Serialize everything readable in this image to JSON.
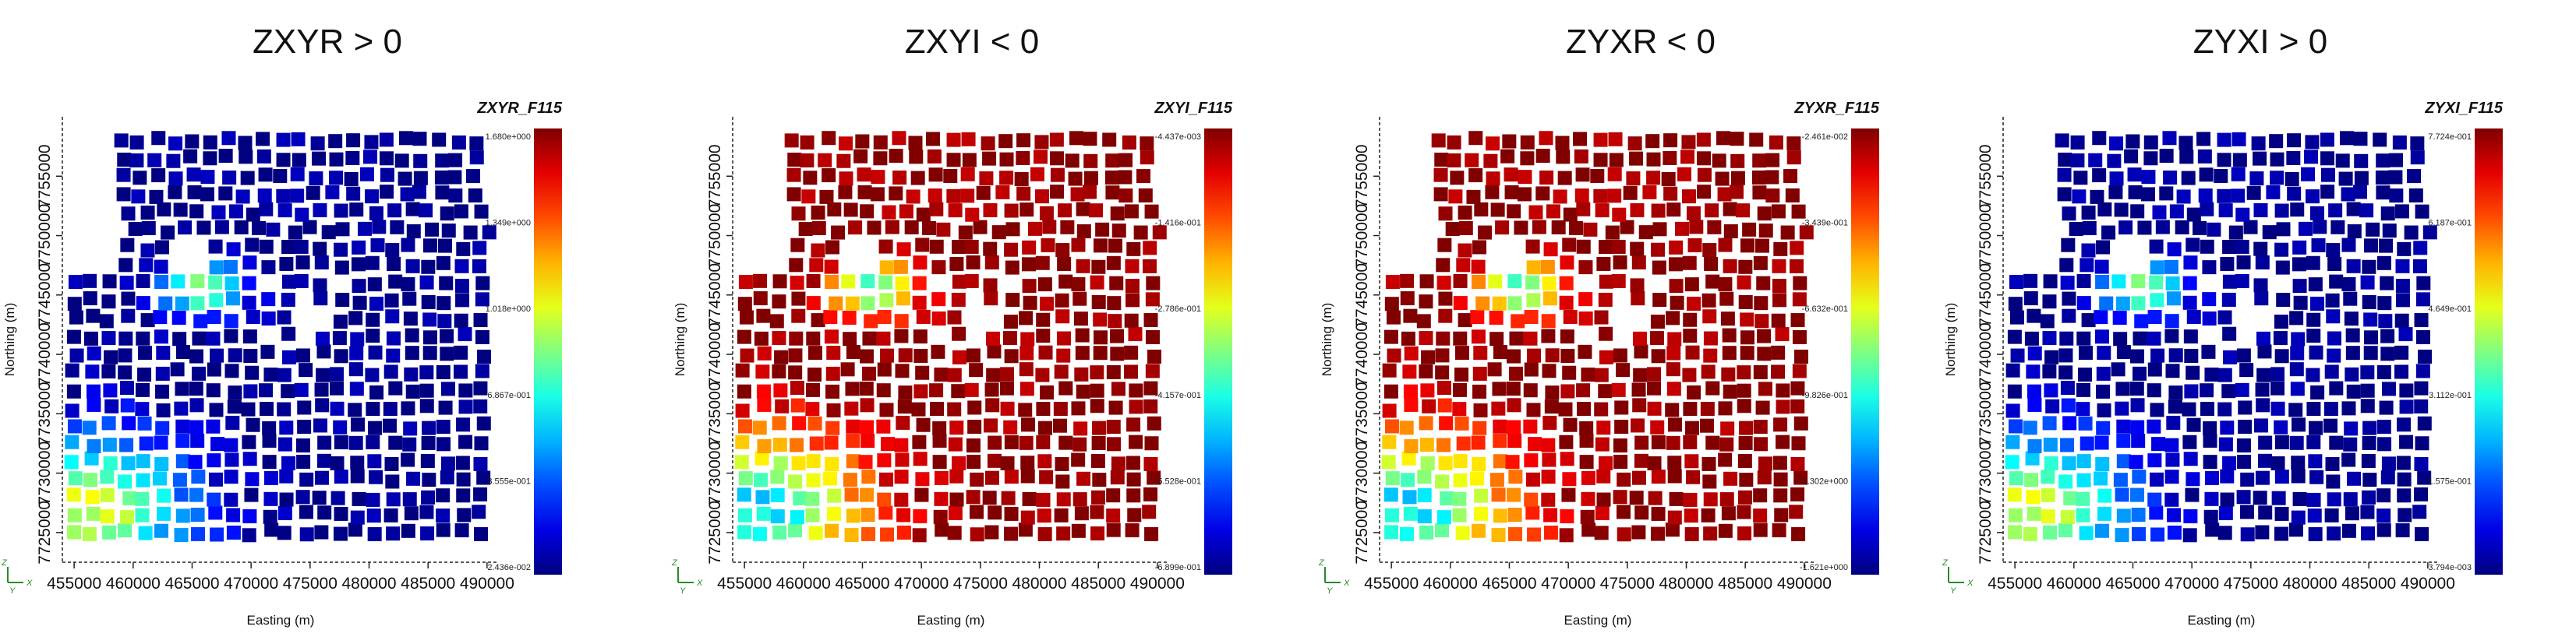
{
  "chart_data": [
    {
      "type": "scatter",
      "title": "ZXYR > 0",
      "series_name": "ZXYR_F115",
      "xlabel": "Easting (m)",
      "ylabel": "Northing (m)",
      "xlim": [
        454000,
        491000
      ],
      "ylim": [
        7722500,
        7760000
      ],
      "x_ticks": [
        455000,
        460000,
        465000,
        470000,
        475000,
        480000,
        485000,
        490000
      ],
      "y_ticks": [
        7725000,
        7730000,
        7735000,
        7740000,
        7745000,
        7750000,
        7755000
      ],
      "colorbar": {
        "min": 0.02436,
        "max": 1.68,
        "labels": [
          "1.680e+000",
          "1.349e+000",
          "1.018e+000",
          "6.867e-001",
          "3.555e-001",
          "2.436e-002"
        ]
      },
      "pattern": "low"
    },
    {
      "type": "scatter",
      "title": "ZXYI < 0",
      "series_name": "ZXYI_F115",
      "xlabel": "Easting (m)",
      "ylabel": "Northing (m)",
      "xlim": [
        454000,
        491000
      ],
      "ylim": [
        7722500,
        7760000
      ],
      "x_ticks": [
        455000,
        460000,
        465000,
        470000,
        475000,
        480000,
        485000,
        490000
      ],
      "y_ticks": [
        7725000,
        7730000,
        7735000,
        7740000,
        7745000,
        7750000,
        7755000
      ],
      "colorbar": {
        "min": -0.6899,
        "max": -0.004437,
        "labels": [
          "-4.437e-003",
          "-1.416e-001",
          "-2.786e-001",
          "-4.157e-001",
          "-5.528e-001",
          "-6.899e-001"
        ]
      },
      "pattern": "high"
    },
    {
      "type": "scatter",
      "title": "ZYXR < 0",
      "series_name": "ZYXR_F115",
      "xlabel": "Easting (m)",
      "ylabel": "Northing (m)",
      "xlim": [
        454000,
        491000
      ],
      "ylim": [
        7722500,
        7760000
      ],
      "x_ticks": [
        455000,
        460000,
        465000,
        470000,
        475000,
        480000,
        485000,
        490000
      ],
      "y_ticks": [
        7725000,
        7730000,
        7735000,
        7740000,
        7745000,
        7750000,
        7755000
      ],
      "colorbar": {
        "min": -1.621,
        "max": -0.02461,
        "labels": [
          "-2.461e-002",
          "-3.439e-001",
          "-6.632e-001",
          "-9.826e-001",
          "-1.302e+000",
          "-1.621e+000"
        ]
      },
      "pattern": "high"
    },
    {
      "type": "scatter",
      "title": "ZYXI > 0",
      "series_name": "ZYXI_F115",
      "xlabel": "Easting (m)",
      "ylabel": "Northing (m)",
      "xlim": [
        454000,
        491000
      ],
      "ylim": [
        7722500,
        7760000
      ],
      "x_ticks": [
        455000,
        460000,
        465000,
        470000,
        475000,
        480000,
        485000,
        490000
      ],
      "y_ticks": [
        7725000,
        7730000,
        7735000,
        7740000,
        7745000,
        7750000,
        7755000
      ],
      "colorbar": {
        "min": 0.003794,
        "max": 0.7724,
        "labels": [
          "7.724e-001",
          "6.187e-001",
          "4.649e-001",
          "3.112e-001",
          "1.575e-001",
          "3.794e-003"
        ]
      },
      "pattern": "low"
    }
  ],
  "orientation_axes": {
    "z": "Z",
    "y": "Y",
    "x": "X"
  }
}
